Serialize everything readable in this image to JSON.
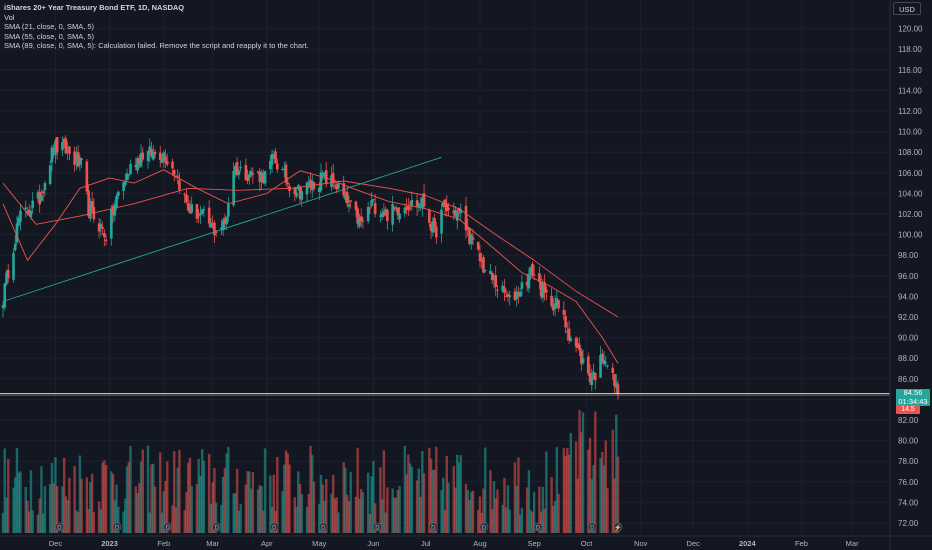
{
  "legend": {
    "symbol_line": "iShares 20+ Year Treasury Bond ETF, 1D, NASDAQ",
    "vol_line": "Vol",
    "sma21_line": "SMA (21, close, 0, SMA, 5)",
    "sma55_line": "SMA (55, close, 0, SMA, 5)",
    "sma89_line": "SMA (89, close, 0, SMA, 5): Calculation failed. Remove the script and reapply it to the chart."
  },
  "currency_label": "USD",
  "last_price_label": "84.56",
  "countdown_label": "01:34:43",
  "volume_label": "14.5",
  "colors": {
    "background": "#131722",
    "up": "#26a69a",
    "down": "#ef5350",
    "sma21": "#ef5350",
    "sma55": "#ef5350",
    "trendline": "#26a69a",
    "price_line": "#f2e15b",
    "text": "#d1d4dc",
    "grid": "#1c2030"
  },
  "chart_data": {
    "type": "candlestick",
    "price_axis": {
      "min": 72,
      "max": 122,
      "ticks": [
        "120.00",
        "118.00",
        "116.00",
        "114.00",
        "112.00",
        "110.00",
        "108.00",
        "106.00",
        "104.00",
        "102.00",
        "100.00",
        "98.00",
        "96.00",
        "94.00",
        "92.00",
        "90.00",
        "88.00",
        "86.00",
        "84.00",
        "82.00",
        "80.00",
        "78.00",
        "76.00",
        "74.00",
        "72.00"
      ]
    },
    "time_axis": {
      "ticks": [
        "Dec",
        "2023",
        "Feb",
        "Mar",
        "Apr",
        "May",
        "Jun",
        "Jul",
        "Aug",
        "Sep",
        "Oct",
        "Nov",
        "Dec",
        "2024",
        "Feb",
        "Mar"
      ]
    },
    "last_close": 84.56,
    "anchors": [
      {
        "date": "2022-11-01",
        "price": 93.8
      },
      {
        "date": "2022-11-04",
        "price": 96.5
      },
      {
        "date": "2022-11-10",
        "price": 101.5
      },
      {
        "date": "2022-11-22",
        "price": 103.5
      },
      {
        "date": "2022-11-30",
        "price": 108.5
      },
      {
        "date": "2022-12-07",
        "price": 108.2
      },
      {
        "date": "2022-12-16",
        "price": 106.5
      },
      {
        "date": "2022-12-20",
        "price": 102.5
      },
      {
        "date": "2022-12-30",
        "price": 99.9
      },
      {
        "date": "2023-01-06",
        "price": 104.0
      },
      {
        "date": "2023-01-13",
        "price": 106.5
      },
      {
        "date": "2023-01-19",
        "price": 107.8
      },
      {
        "date": "2023-02-01",
        "price": 107.9
      },
      {
        "date": "2023-02-08",
        "price": 106.0
      },
      {
        "date": "2023-02-15",
        "price": 102.5
      },
      {
        "date": "2023-02-24",
        "price": 101.7
      },
      {
        "date": "2023-03-02",
        "price": 100.4
      },
      {
        "date": "2023-03-08",
        "price": 101.0
      },
      {
        "date": "2023-03-13",
        "price": 106.5
      },
      {
        "date": "2023-03-20",
        "price": 106.0
      },
      {
        "date": "2023-03-31",
        "price": 105.7
      },
      {
        "date": "2023-04-05",
        "price": 107.5
      },
      {
        "date": "2023-04-13",
        "price": 105.0
      },
      {
        "date": "2023-04-20",
        "price": 104.2
      },
      {
        "date": "2023-05-03",
        "price": 105.5
      },
      {
        "date": "2023-05-10",
        "price": 105.0
      },
      {
        "date": "2023-05-17",
        "price": 103.0
      },
      {
        "date": "2023-05-25",
        "price": 101.0
      },
      {
        "date": "2023-05-31",
        "price": 103.0
      },
      {
        "date": "2023-06-09",
        "price": 102.0
      },
      {
        "date": "2023-06-20",
        "price": 103.0
      },
      {
        "date": "2023-06-30",
        "price": 103.0
      },
      {
        "date": "2023-07-06",
        "price": 100.0
      },
      {
        "date": "2023-07-11",
        "price": 102.5
      },
      {
        "date": "2023-07-21",
        "price": 102.0
      },
      {
        "date": "2023-07-28",
        "price": 99.0
      },
      {
        "date": "2023-08-04",
        "price": 96.5
      },
      {
        "date": "2023-08-11",
        "price": 95.0
      },
      {
        "date": "2023-08-18",
        "price": 93.5
      },
      {
        "date": "2023-08-25",
        "price": 95.0
      },
      {
        "date": "2023-08-31",
        "price": 96.5
      },
      {
        "date": "2023-09-07",
        "price": 94.0
      },
      {
        "date": "2023-09-14",
        "price": 93.2
      },
      {
        "date": "2023-09-21",
        "price": 90.5
      },
      {
        "date": "2023-09-28",
        "price": 88.0
      },
      {
        "date": "2023-10-03",
        "price": 86.2
      },
      {
        "date": "2023-10-06",
        "price": 86.5
      },
      {
        "date": "2023-10-11",
        "price": 88.5
      },
      {
        "date": "2023-10-16",
        "price": 86.0
      },
      {
        "date": "2023-10-19",
        "price": 84.6
      }
    ],
    "sma21": [
      {
        "date": "2022-11-01",
        "price": 103.0
      },
      {
        "date": "2022-11-15",
        "price": 97.5
      },
      {
        "date": "2022-12-01",
        "price": 101.0
      },
      {
        "date": "2022-12-15",
        "price": 104.5
      },
      {
        "date": "2023-01-01",
        "price": 105.5
      },
      {
        "date": "2023-01-15",
        "price": 105.0
      },
      {
        "date": "2023-02-01",
        "price": 106.3
      },
      {
        "date": "2023-02-20",
        "price": 104.5
      },
      {
        "date": "2023-03-10",
        "price": 103.0
      },
      {
        "date": "2023-04-01",
        "price": 104.0
      },
      {
        "date": "2023-04-20",
        "price": 106.2
      },
      {
        "date": "2023-05-05",
        "price": 105.5
      },
      {
        "date": "2023-05-20",
        "price": 104.5
      },
      {
        "date": "2023-06-10",
        "price": 103.2
      },
      {
        "date": "2023-07-01",
        "price": 102.5
      },
      {
        "date": "2023-07-20",
        "price": 101.5
      },
      {
        "date": "2023-08-10",
        "price": 98.5
      },
      {
        "date": "2023-08-25",
        "price": 96.3
      },
      {
        "date": "2023-09-10",
        "price": 95.0
      },
      {
        "date": "2023-09-25",
        "price": 93.5
      },
      {
        "date": "2023-10-10",
        "price": 90.0
      },
      {
        "date": "2023-10-19",
        "price": 87.5
      }
    ],
    "sma55": [
      {
        "date": "2022-11-01",
        "price": 105.0
      },
      {
        "date": "2022-11-20",
        "price": 101.0
      },
      {
        "date": "2022-12-15",
        "price": 101.8
      },
      {
        "date": "2023-01-15",
        "price": 103.0
      },
      {
        "date": "2023-02-15",
        "price": 104.5
      },
      {
        "date": "2023-03-15",
        "price": 104.3
      },
      {
        "date": "2023-04-15",
        "price": 104.5
      },
      {
        "date": "2023-05-15",
        "price": 105.2
      },
      {
        "date": "2023-06-10",
        "price": 104.5
      },
      {
        "date": "2023-07-01",
        "price": 103.8
      },
      {
        "date": "2023-07-20",
        "price": 102.5
      },
      {
        "date": "2023-08-10",
        "price": 100.0
      },
      {
        "date": "2023-09-01",
        "price": 97.5
      },
      {
        "date": "2023-09-25",
        "price": 94.5
      },
      {
        "date": "2023-10-19",
        "price": 92.0
      }
    ],
    "trendline": [
      {
        "date": "2022-11-01",
        "price": 93.5
      },
      {
        "date": "2023-07-10",
        "price": 107.5
      }
    ]
  }
}
